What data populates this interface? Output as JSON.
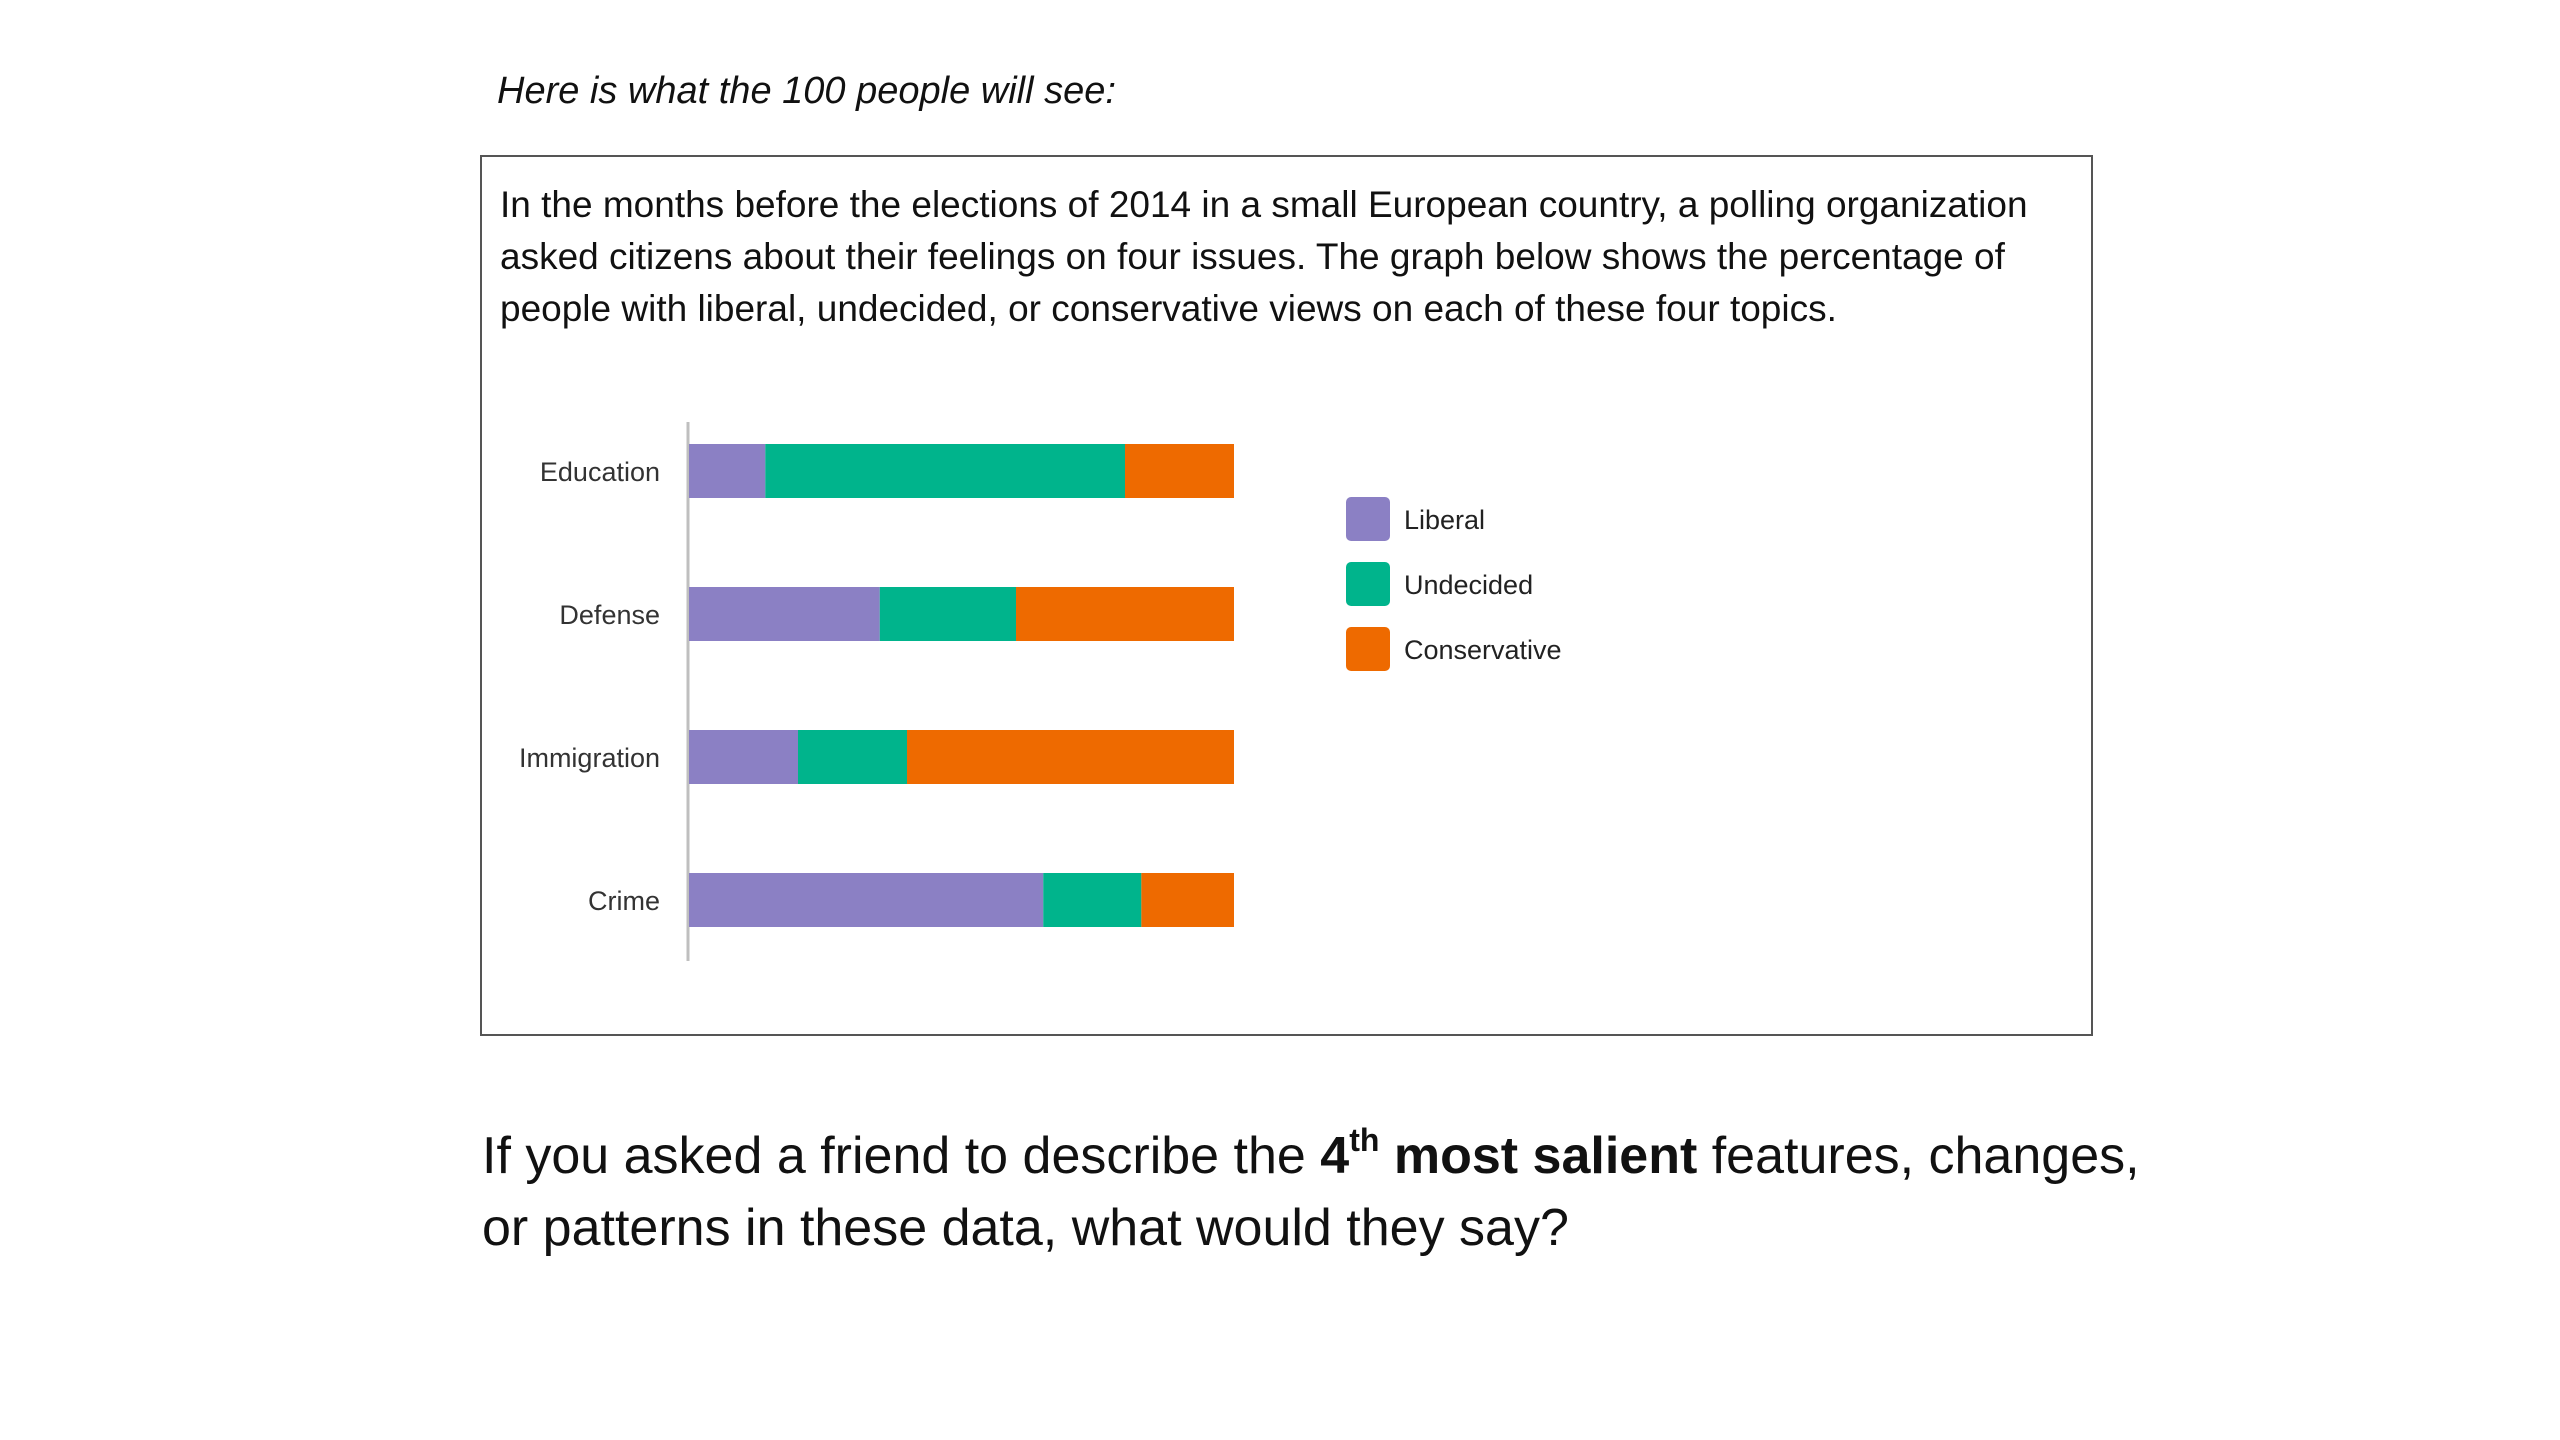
{
  "caption": "Here is what the 100 people will see:",
  "intro_text": "In the months before the elections of 2014 in a small European country, a polling organization asked citizens about their feelings on four issues. The graph below shows the percentage of people with liberal, undecided, or conservative views on each of these four topics.",
  "question": {
    "part1": "If you asked a friend to describe the ",
    "ordinal_number": "4",
    "ordinal_suffix": "th",
    "bold_phrase": " most salient",
    "part2": " features, changes, or patterns in these data, what would they say?"
  },
  "colors": {
    "liberal": "#8b80c4",
    "undecided": "#00b48c",
    "conservative": "#ee6a00"
  },
  "chart_data": {
    "type": "bar",
    "orientation": "horizontal",
    "stacked": true,
    "title": "",
    "xlabel": "",
    "ylabel": "",
    "xlim": [
      0,
      100
    ],
    "grid": false,
    "legend_position": "right",
    "categories": [
      "Education",
      "Defense",
      "Immigration",
      "Crime"
    ],
    "series": [
      {
        "name": "Liberal",
        "color": "#8b80c4",
        "values": [
          14,
          35,
          20,
          65
        ]
      },
      {
        "name": "Undecided",
        "color": "#00b48c",
        "values": [
          66,
          25,
          20,
          18
        ]
      },
      {
        "name": "Conservative",
        "color": "#ee6a00",
        "values": [
          20,
          40,
          60,
          17
        ]
      }
    ]
  }
}
